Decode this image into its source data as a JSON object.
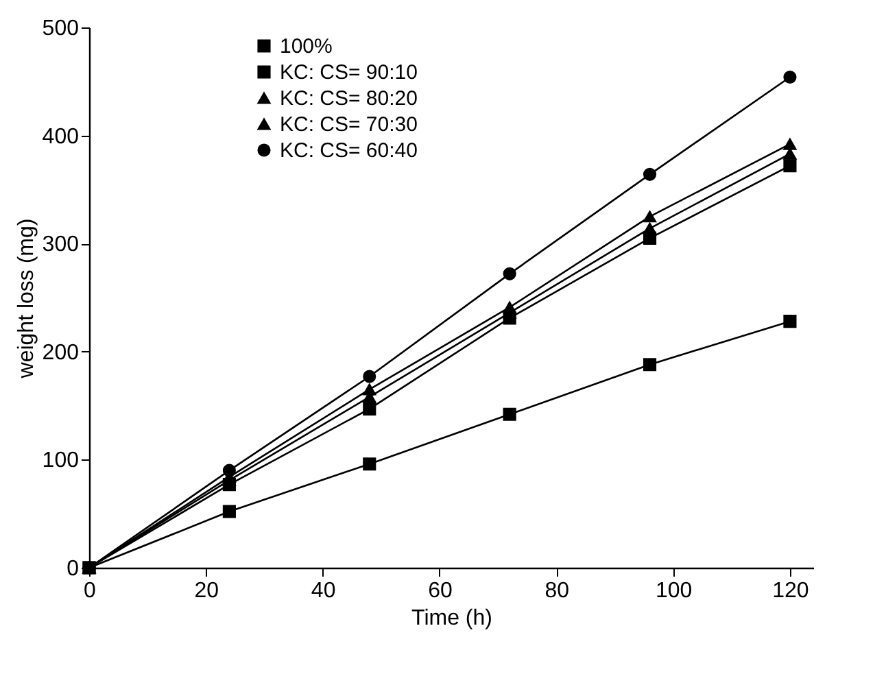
{
  "chart_data": {
    "type": "line",
    "xlabel": "Time (h)",
    "ylabel": "weight loss (mg)",
    "x": [
      0,
      24,
      48,
      72,
      96,
      120
    ],
    "series": [
      {
        "name": "100%",
        "color": "#000000",
        "marker": "square",
        "values": [
          0,
          52,
          96,
          142,
          188,
          228
        ]
      },
      {
        "name": "KC: CS= 90:10",
        "color": "#000000",
        "marker": "square",
        "values": [
          0,
          77,
          147,
          231,
          305,
          372
        ]
      },
      {
        "name": "KC: CS= 80:20",
        "color": "#000000",
        "marker": "triangle",
        "values": [
          0,
          81,
          158,
          236,
          314,
          383
        ]
      },
      {
        "name": "KC: CS= 70:30",
        "color": "#000000",
        "marker": "triangle",
        "values": [
          0,
          84,
          165,
          241,
          325,
          392
        ]
      },
      {
        "name": "KC: CS= 60:40",
        "color": "#000000",
        "marker": "circle",
        "values": [
          0,
          90,
          177,
          272,
          364,
          454
        ]
      }
    ],
    "xlim": [
      0,
      124
    ],
    "xticks": [
      0,
      20,
      40,
      60,
      80,
      100,
      120
    ],
    "ylim": [
      0,
      500
    ],
    "yticks": [
      0,
      100,
      200,
      300,
      400,
      500
    ],
    "grid": false,
    "legend": "top left",
    "line_style": "solid"
  }
}
